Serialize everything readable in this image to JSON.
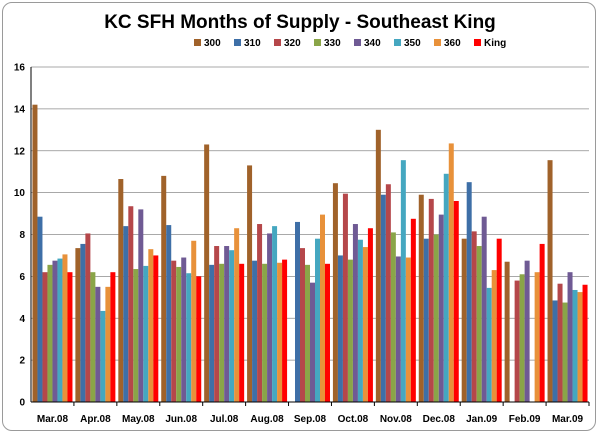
{
  "chart_data": {
    "type": "bar",
    "title": "KC SFH Months of Supply - Southeast King",
    "xlabel": "",
    "ylabel": "",
    "ylim": [
      0,
      16
    ],
    "yticks": [
      0,
      2,
      4,
      6,
      8,
      10,
      12,
      14,
      16
    ],
    "grid": true,
    "legend_position": "top-right",
    "categories": [
      "Mar.08",
      "Apr.08",
      "May.08",
      "Jun.08",
      "Jul.08",
      "Aug.08",
      "Sep.08",
      "Oct.08",
      "Nov.08",
      "Dec.08",
      "Jan.09",
      "Feb.09",
      "Mar.09"
    ],
    "series": [
      {
        "name": "300",
        "color": "#a0622a",
        "values": [
          14.2,
          7.35,
          10.65,
          10.8,
          12.3,
          11.3,
          null,
          10.45,
          13.0,
          9.9,
          7.8,
          6.7,
          11.55
        ]
      },
      {
        "name": "310",
        "color": "#3e6fa7",
        "values": [
          8.85,
          7.55,
          8.4,
          8.45,
          6.55,
          6.75,
          8.6,
          7.0,
          9.9,
          7.8,
          10.5,
          null,
          4.85
        ]
      },
      {
        "name": "320",
        "color": "#b5474a",
        "values": [
          6.2,
          8.05,
          9.35,
          6.75,
          7.45,
          8.5,
          7.35,
          9.95,
          10.4,
          9.7,
          8.15,
          5.8,
          5.65
        ]
      },
      {
        "name": "330",
        "color": "#8aa548",
        "values": [
          6.55,
          6.2,
          6.35,
          6.45,
          6.6,
          6.6,
          6.55,
          6.8,
          8.1,
          8.0,
          7.45,
          6.1,
          4.75
        ]
      },
      {
        "name": "340",
        "color": "#6f5a94",
        "values": [
          6.75,
          5.5,
          9.2,
          6.9,
          7.45,
          8.05,
          5.7,
          8.5,
          6.95,
          8.95,
          8.85,
          6.75,
          6.2
        ]
      },
      {
        "name": "350",
        "color": "#45a7c0",
        "values": [
          6.85,
          4.35,
          6.5,
          6.15,
          7.25,
          8.4,
          7.8,
          7.75,
          11.55,
          10.9,
          5.45,
          null,
          5.35
        ]
      },
      {
        "name": "360",
        "color": "#e8913a",
        "values": [
          7.05,
          5.5,
          7.3,
          7.7,
          8.3,
          6.65,
          8.95,
          7.4,
          6.9,
          12.35,
          6.3,
          6.2,
          5.25
        ]
      },
      {
        "name": "King",
        "color": "#ff0000",
        "values": [
          6.2,
          6.2,
          7.0,
          6.0,
          6.6,
          6.8,
          6.6,
          8.3,
          8.75,
          9.6,
          7.8,
          7.55,
          5.6
        ]
      }
    ]
  }
}
